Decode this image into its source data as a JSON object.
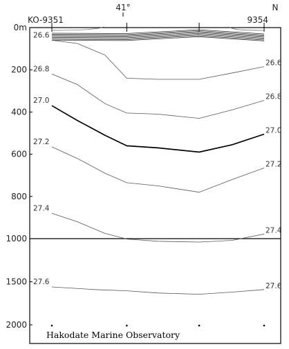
{
  "chart_data": {
    "type": "line",
    "subtype": "vertical-section-isopycnals",
    "top_labels": {
      "latitude": "41°",
      "direction": "N"
    },
    "stations": [
      {
        "label": "KO-9351",
        "position": 0.0
      },
      {
        "label": "",
        "position": 0.353
      },
      {
        "label": "",
        "position": 0.694
      },
      {
        "label": "9354",
        "position": 1.0
      }
    ],
    "y_axis": {
      "ticks": [
        {
          "value": 0,
          "label": "0m"
        },
        {
          "value": 200,
          "label": "200"
        },
        {
          "value": 400,
          "label": "400"
        },
        {
          "value": 600,
          "label": "600"
        },
        {
          "value": 800,
          "label": "800"
        },
        {
          "value": 1000,
          "label": "1000"
        },
        {
          "value": 1500,
          "label": "1500"
        },
        {
          "value": 2000,
          "label": "2000"
        }
      ],
      "break_at": 1000,
      "upper_range": [
        0,
        1000
      ],
      "lower_range": [
        1000,
        2000
      ]
    },
    "surface_band": "dense isopycnals near 0–60 m",
    "series": [
      {
        "name": "26.6",
        "left_label": "26.6",
        "right_label": "26.6",
        "bold": false,
        "points": [
          [
            0,
            60
          ],
          [
            0.12,
            75
          ],
          [
            0.25,
            130
          ],
          [
            0.353,
            240
          ],
          [
            0.5,
            245
          ],
          [
            0.694,
            245
          ],
          [
            0.85,
            215
          ],
          [
            1.0,
            185
          ]
        ]
      },
      {
        "name": "26.8",
        "left_label": "26.8",
        "right_label": "26.8",
        "bold": false,
        "points": [
          [
            0,
            220
          ],
          [
            0.12,
            270
          ],
          [
            0.25,
            360
          ],
          [
            0.353,
            405
          ],
          [
            0.5,
            410
          ],
          [
            0.694,
            430
          ],
          [
            0.85,
            390
          ],
          [
            1.0,
            345
          ]
        ]
      },
      {
        "name": "27.0",
        "left_label": "27.0",
        "right_label": "27.0",
        "bold": true,
        "points": [
          [
            0,
            370
          ],
          [
            0.12,
            440
          ],
          [
            0.25,
            510
          ],
          [
            0.353,
            560
          ],
          [
            0.5,
            570
          ],
          [
            0.694,
            590
          ],
          [
            0.85,
            555
          ],
          [
            1.0,
            505
          ]
        ]
      },
      {
        "name": "27.2",
        "left_label": "27.2",
        "right_label": "27.2",
        "bold": false,
        "points": [
          [
            0,
            565
          ],
          [
            0.12,
            620
          ],
          [
            0.25,
            690
          ],
          [
            0.353,
            735
          ],
          [
            0.5,
            750
          ],
          [
            0.694,
            780
          ],
          [
            0.85,
            720
          ],
          [
            1.0,
            665
          ]
        ]
      },
      {
        "name": "27.4",
        "left_label": "27.4",
        "right_label": "27.4",
        "bold": false,
        "points": [
          [
            0,
            880
          ],
          [
            0.12,
            920
          ],
          [
            0.25,
            975
          ],
          [
            0.353,
            1005
          ],
          [
            0.5,
            1030
          ],
          [
            0.694,
            1040
          ],
          [
            0.85,
            1020
          ],
          [
            1.0,
            978
          ]
        ]
      },
      {
        "name": "27.6",
        "left_label": "27.6",
        "right_label": "27.6",
        "bold": false,
        "points": [
          [
            0,
            1560
          ],
          [
            0.2,
            1590
          ],
          [
            0.353,
            1605
          ],
          [
            0.5,
            1630
          ],
          [
            0.694,
            1645
          ],
          [
            0.85,
            1620
          ],
          [
            1.0,
            1590
          ]
        ]
      }
    ],
    "credit": "Hakodate Marine Observatory"
  }
}
